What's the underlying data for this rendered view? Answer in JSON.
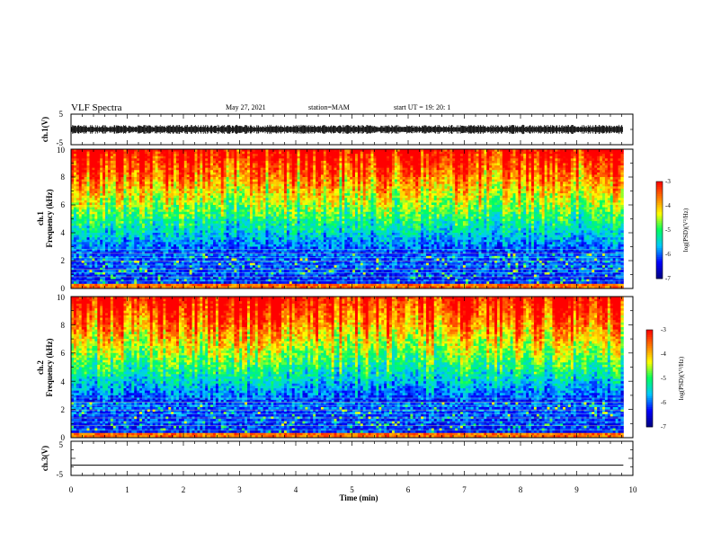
{
  "header": {
    "title": "VLF Spectra",
    "date": "May 27, 2021",
    "station": "station=MAM",
    "start": "start  UT =   19: 20: 1"
  },
  "colors": {
    "foreground": "#000000",
    "background": "#ffffff",
    "colormap": [
      "#000080",
      "#0000ff",
      "#00c8ff",
      "#00ff60",
      "#ffff00",
      "#ff7a00",
      "#ff0000"
    ]
  },
  "chart_data": [
    {
      "type": "line",
      "panel": "ch1-waveform",
      "ylabel": "ch.1(V)",
      "ylim": [
        -5,
        5
      ],
      "yticks": [
        "5",
        "-5"
      ],
      "xlim": [
        0,
        10
      ],
      "description_values": {
        "signal_range": [
          -1.5,
          1.5
        ]
      }
    },
    {
      "type": "heatmap",
      "panel": "ch1-spectrogram",
      "ylabel_line1": "ch.1",
      "ylabel_line2": "Frequency (kHz)",
      "ylim": [
        0,
        10
      ],
      "yticks": [
        "0",
        "2",
        "4",
        "6",
        "8",
        "10"
      ],
      "xlim": [
        0,
        9.83
      ],
      "colorbar": {
        "label": "log(PSD)(V²/Hz)",
        "range": [
          -7,
          -3
        ],
        "ticks": [
          "-3",
          "-4",
          "-5",
          "-6",
          "-7"
        ]
      }
    },
    {
      "type": "heatmap",
      "panel": "ch2-spectrogram",
      "ylabel_line1": "ch.2",
      "ylabel_line2": "Frequency (kHz)",
      "ylim": [
        0,
        10
      ],
      "yticks": [
        "0",
        "2",
        "4",
        "6",
        "8",
        "10"
      ],
      "xlim": [
        0,
        9.83
      ],
      "colorbar": {
        "label": "log(PSD)(V²/Hz)",
        "range": [
          -7,
          -3
        ],
        "ticks": [
          "-3",
          "-4",
          "-5",
          "-6",
          "-7"
        ]
      }
    },
    {
      "type": "line",
      "panel": "ch3-waveform",
      "ylabel": "ch.3(V)",
      "ylim": [
        -5,
        5
      ],
      "yticks": [
        "5",
        "-5"
      ],
      "xlim": [
        0,
        10
      ],
      "x": [
        0,
        9.83
      ],
      "y": [
        -2,
        -2
      ]
    }
  ],
  "xaxis": {
    "label": "Time (min)",
    "ticks": [
      "0",
      "1",
      "2",
      "3",
      "4",
      "5",
      "6",
      "7",
      "8",
      "9",
      "10"
    ],
    "range": [
      0,
      10
    ]
  }
}
